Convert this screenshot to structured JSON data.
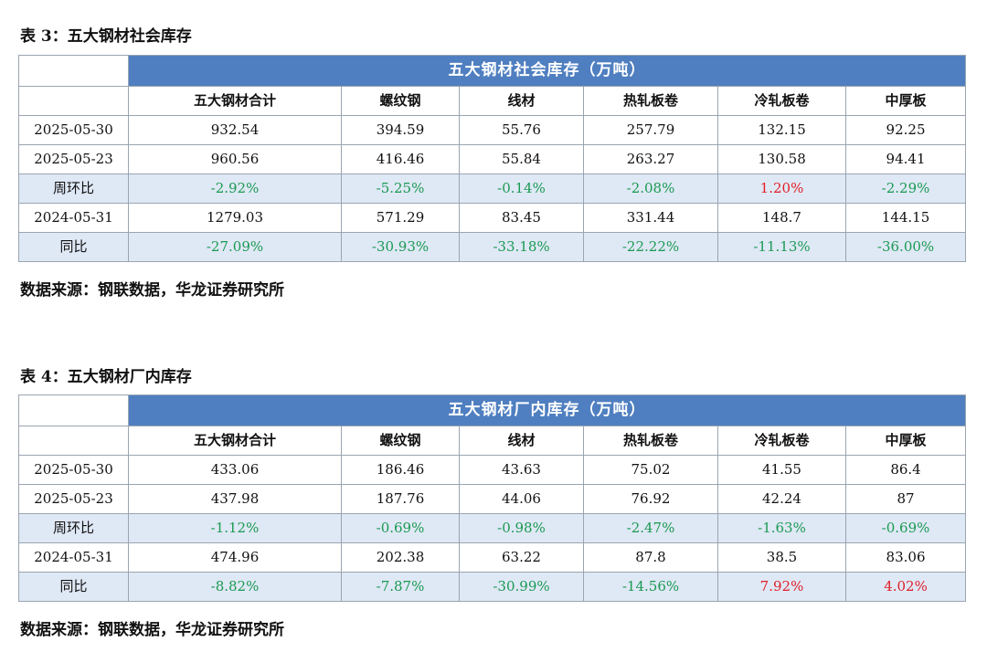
{
  "tables": [
    {
      "caption": "表 3：五大钢材社会库存",
      "banner": "五大钢材社会库存（万吨）",
      "columns": [
        "五大钢材合计",
        "螺纹钢",
        "线材",
        "热轧板卷",
        "冷轧板卷",
        "中厚板"
      ],
      "rows": [
        {
          "label": "2025-05-30",
          "type": "value",
          "cells": [
            "932.54",
            "394.59",
            "55.76",
            "257.79",
            "132.15",
            "92.25"
          ]
        },
        {
          "label": "2025-05-23",
          "type": "value",
          "cells": [
            "960.56",
            "416.46",
            "55.84",
            "263.27",
            "130.58",
            "94.41"
          ]
        },
        {
          "label": "周环比",
          "type": "ratio",
          "cells": [
            "-2.92%",
            "-5.25%",
            "-0.14%",
            "-2.08%",
            "1.20%",
            "-2.29%"
          ]
        },
        {
          "label": "2024-05-31",
          "type": "value",
          "cells": [
            "1279.03",
            "571.29",
            "83.45",
            "331.44",
            "148.7",
            "144.15"
          ]
        },
        {
          "label": "同比",
          "type": "ratio",
          "cells": [
            "-27.09%",
            "-30.93%",
            "-33.18%",
            "-22.22%",
            "-11.13%",
            "-36.00%"
          ]
        }
      ],
      "source": "数据来源：钢联数据，华龙证券研究所"
    },
    {
      "caption": "表 4：五大钢材厂内库存",
      "banner": "五大钢材厂内库存（万吨）",
      "columns": [
        "五大钢材合计",
        "螺纹钢",
        "线材",
        "热轧板卷",
        "冷轧板卷",
        "中厚板"
      ],
      "rows": [
        {
          "label": "2025-05-30",
          "type": "value",
          "cells": [
            "433.06",
            "186.46",
            "43.63",
            "75.02",
            "41.55",
            "86.4"
          ]
        },
        {
          "label": "2025-05-23",
          "type": "value",
          "cells": [
            "437.98",
            "187.76",
            "44.06",
            "76.92",
            "42.24",
            "87"
          ]
        },
        {
          "label": "周环比",
          "type": "ratio",
          "cells": [
            "-1.12%",
            "-0.69%",
            "-0.98%",
            "-2.47%",
            "-1.63%",
            "-0.69%"
          ]
        },
        {
          "label": "2024-05-31",
          "type": "value",
          "cells": [
            "474.96",
            "202.38",
            "63.22",
            "87.8",
            "38.5",
            "83.06"
          ]
        },
        {
          "label": "同比",
          "type": "ratio",
          "cells": [
            "-8.82%",
            "-7.87%",
            "-30.99%",
            "-14.56%",
            "7.92%",
            "4.02%"
          ]
        }
      ],
      "source": "数据来源：钢联数据，华龙证券研究所"
    }
  ],
  "colors": {
    "banner": "#4f7fc0",
    "ratio_row_bg": "#dfe8f5",
    "positive": "#e0202a",
    "negative": "#1a9a52"
  }
}
